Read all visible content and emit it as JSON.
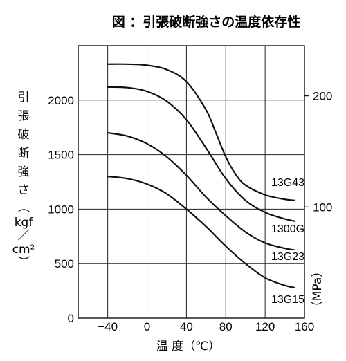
{
  "chart_data": {
    "type": "line",
    "title": "図 ：引張破断強さの温度依存性",
    "xlabel": "温 度（℃）",
    "ylabel": "引張破断強さ（kgf／cm²）",
    "ylabel_chars": [
      "引",
      "張",
      "破",
      "断",
      "強",
      "さ",
      "（",
      "kgf",
      "／",
      "cm²",
      "）"
    ],
    "y2label": "（MPa）",
    "xlim": [
      -70,
      160
    ],
    "ylim": [
      0,
      2500
    ],
    "y2lim": [
      0,
      245.2
    ],
    "x_ticks": [
      "−40",
      "0",
      "40",
      "80",
      "120",
      "160"
    ],
    "y_ticks": [
      "0",
      "500",
      "1000",
      "1500",
      "2000"
    ],
    "y2_ticks": [
      "100",
      "200"
    ],
    "grid": true,
    "series": [
      {
        "name": "13G43",
        "x": [
          -40,
          -20,
          0,
          20,
          40,
          60,
          70,
          80,
          90,
          100,
          120,
          140,
          150
        ],
        "y": [
          2330,
          2330,
          2320,
          2280,
          2170,
          1910,
          1700,
          1480,
          1320,
          1220,
          1130,
          1090,
          1080
        ]
      },
      {
        "name": "1300G",
        "x": [
          -40,
          -20,
          0,
          20,
          40,
          60,
          80,
          100,
          120,
          140,
          150
        ],
        "y": [
          2120,
          2115,
          2080,
          1990,
          1820,
          1560,
          1280,
          1080,
          970,
          910,
          890
        ]
      },
      {
        "name": "13G23",
        "x": [
          -40,
          -20,
          0,
          20,
          40,
          60,
          80,
          100,
          120,
          140,
          150
        ],
        "y": [
          1700,
          1670,
          1600,
          1480,
          1310,
          1110,
          940,
          790,
          690,
          640,
          625
        ]
      },
      {
        "name": "13G15",
        "x": [
          -40,
          -20,
          0,
          20,
          40,
          60,
          80,
          100,
          120,
          140,
          150
        ],
        "y": [
          1300,
          1280,
          1230,
          1140,
          1000,
          840,
          660,
          500,
          370,
          300,
          280
        ]
      }
    ]
  },
  "style": {
    "line_color": "#111111",
    "grid_color": "#222222",
    "background": "#ffffff"
  }
}
